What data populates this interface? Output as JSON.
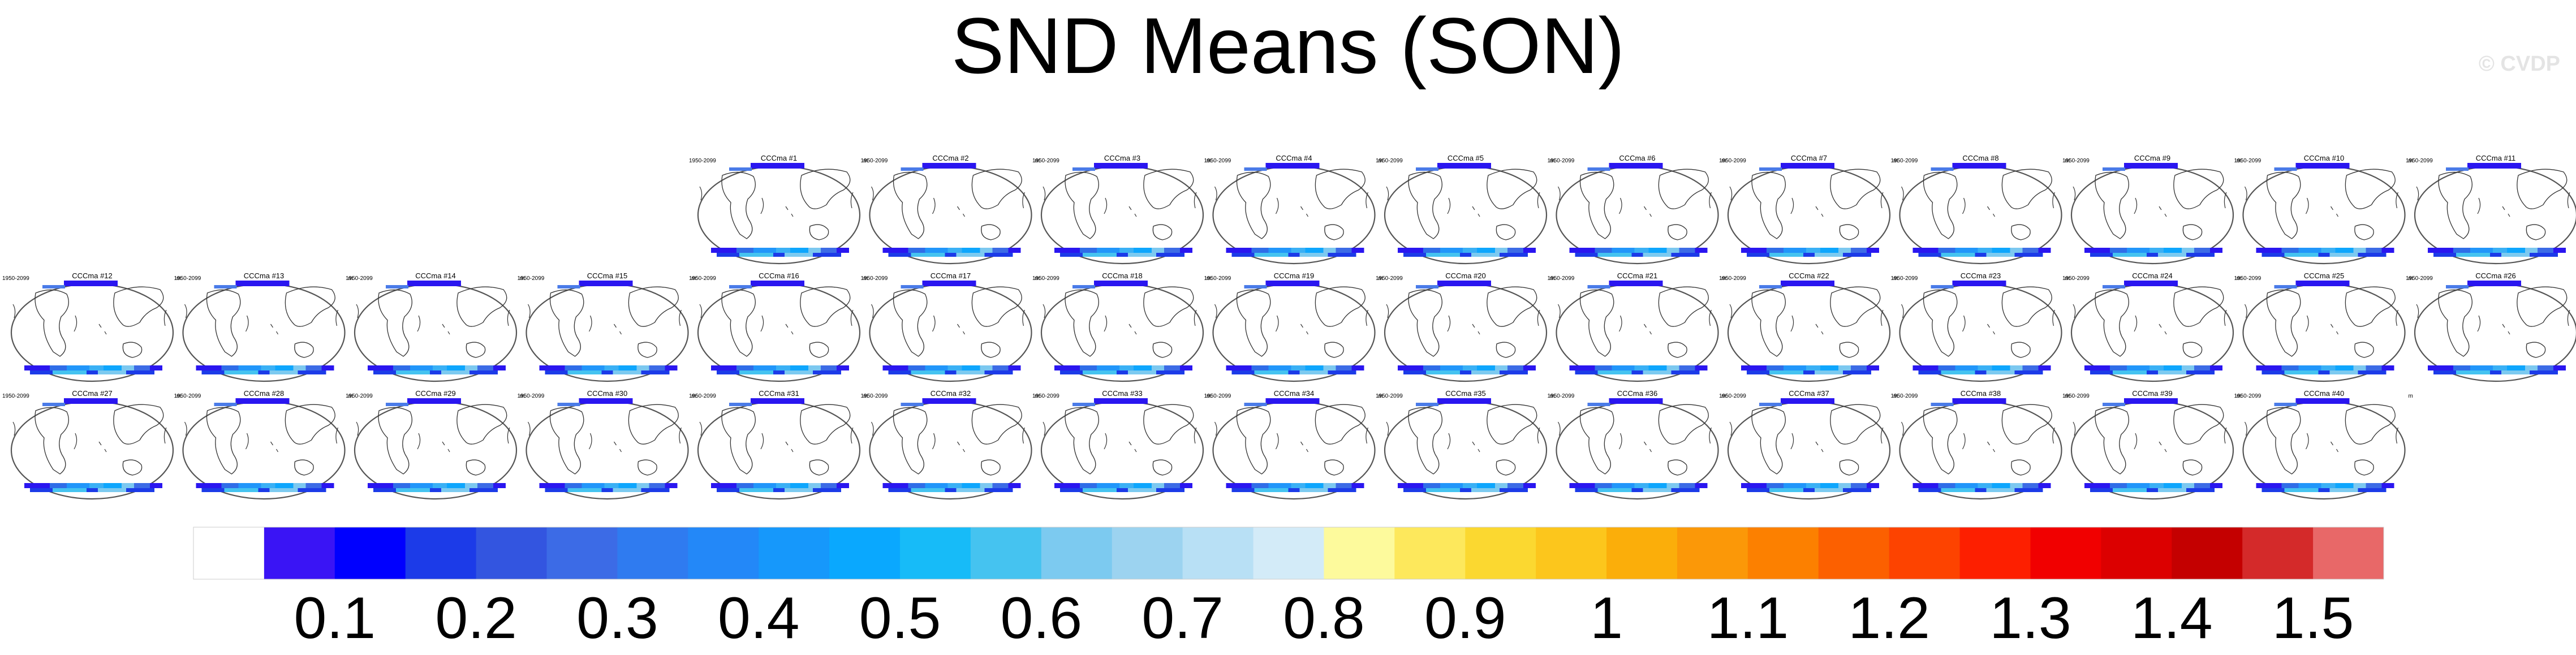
{
  "title": "SND Means (SON)",
  "watermark": "© CVDP",
  "chart_data": {
    "type": "heatmap",
    "title": "SND Means (SON)",
    "panel_type": "map",
    "panel_left_label": "1950-2099",
    "panel_right_label": "m",
    "panels": [
      "CCCma #1",
      "CCCma #2",
      "CCCma #3",
      "CCCma #4",
      "CCCma #5",
      "CCCma #6",
      "CCCma #7",
      "CCCma #8",
      "CCCma #9",
      "CCCma #10",
      "CCCma #11",
      "CCCma #12",
      "CCCma #13",
      "CCCma #14",
      "CCCma #15",
      "CCCma #16",
      "CCCma #17",
      "CCCma #18",
      "CCCma #19",
      "CCCma #20",
      "CCCma #21",
      "CCCma #22",
      "CCCma #23",
      "CCCma #24",
      "CCCma #25",
      "CCCma #26",
      "CCCma #27",
      "CCCma #28",
      "CCCma #29",
      "CCCma #30",
      "CCCma #31",
      "CCCma #32",
      "CCCma #33",
      "CCCma #34",
      "CCCma #35",
      "CCCma #36",
      "CCCma #37",
      "CCCma #38",
      "CCCma #39",
      "CCCma #40"
    ],
    "colorbar": {
      "ticks": [
        "0.1",
        "0.2",
        "0.3",
        "0.4",
        "0.5",
        "0.6",
        "0.7",
        "0.8",
        "0.9",
        "1",
        "1.1",
        "1.2",
        "1.3",
        "1.4",
        "1.5"
      ],
      "colors": [
        "#ffffff",
        "#3a14f5",
        "#0000ff",
        "#1c3be8",
        "#3355e0",
        "#3c6be6",
        "#2f7bf0",
        "#2388f8",
        "#1698fb",
        "#0aa8fe",
        "#17bbf8",
        "#45c3f0",
        "#7ccaf0",
        "#9cd3f0",
        "#b8e0f5",
        "#d3ebf8",
        "#fdfa9c",
        "#fde85c",
        "#fbd830",
        "#fcc61c",
        "#fbae0a",
        "#fb9808",
        "#fc8000",
        "#fc6000",
        "#fd4300",
        "#fd1f00",
        "#f10000",
        "#dc0000",
        "#c40000",
        "#d42a2a",
        "#e86868"
      ]
    }
  }
}
